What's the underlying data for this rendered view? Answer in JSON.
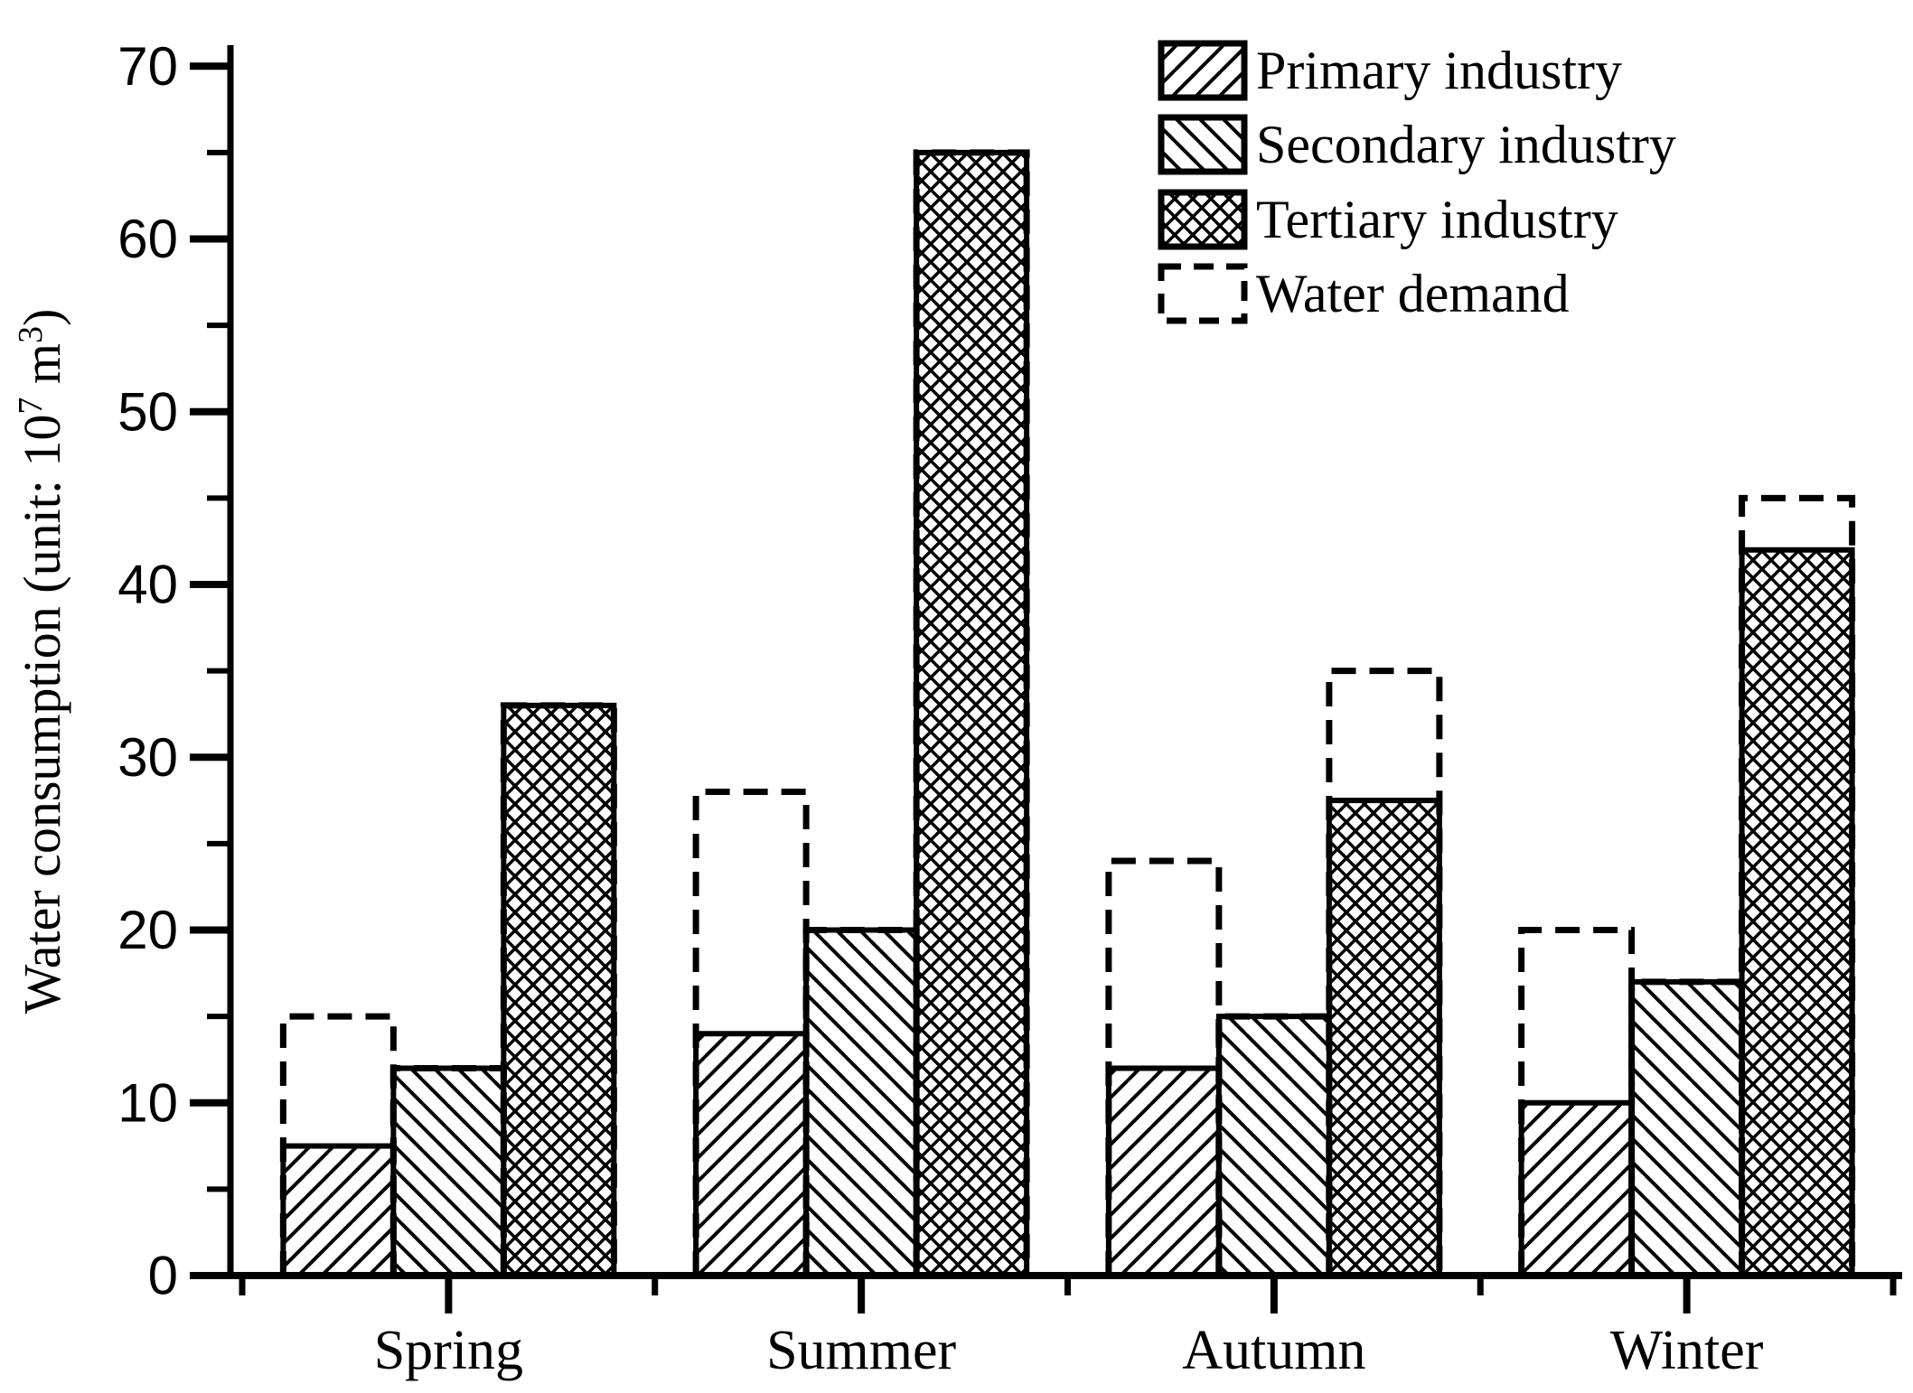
{
  "figure": {
    "background": "#ffffff",
    "foreground": "#000000"
  },
  "chart_data": {
    "type": "bar",
    "title": "",
    "ylabel": "Water consumption (unit: 10^7 m^3)",
    "ylabel_parts": {
      "prefix": "Water consumption (unit: 10",
      "sup1": "7",
      "mid": " m",
      "sup2": "3",
      "suffix": ")"
    },
    "xlabel": "",
    "categories": [
      "Spring",
      "Summer",
      "Autumn",
      "Winter"
    ],
    "series": [
      {
        "name": "Primary industry",
        "hatch": "forward-diagonal",
        "values": [
          7.5,
          14,
          12,
          10
        ]
      },
      {
        "name": "Secondary industry",
        "hatch": "backward-diagonal",
        "values": [
          12,
          20,
          15,
          17
        ]
      },
      {
        "name": "Tertiary industry",
        "hatch": "crosshatch",
        "values": [
          33,
          65,
          27.5,
          42
        ]
      }
    ],
    "water_demand": {
      "name": "Water demand",
      "style": "dashed-outline",
      "values_by_category": [
        [
          15,
          12,
          33
        ],
        [
          28,
          20,
          65
        ],
        [
          24,
          15,
          35
        ],
        [
          20,
          17,
          45
        ]
      ]
    },
    "yticks": [
      0,
      10,
      20,
      30,
      40,
      50,
      60,
      70
    ],
    "minor_yticks": [
      5,
      15,
      25,
      35,
      45,
      55,
      65
    ],
    "ylim": [
      0,
      70
    ],
    "grid": false,
    "legend_position": "top-right",
    "bar_color": "#ffffff",
    "line_color": "#000000"
  },
  "legend": {
    "items": [
      {
        "label": "Primary industry",
        "swatch": "forward-diagonal"
      },
      {
        "label": "Secondary industry",
        "swatch": "backward-diagonal"
      },
      {
        "label": "Tertiary industry",
        "swatch": "crosshatch"
      },
      {
        "label": "Water demand",
        "swatch": "dashed-outline"
      }
    ]
  }
}
